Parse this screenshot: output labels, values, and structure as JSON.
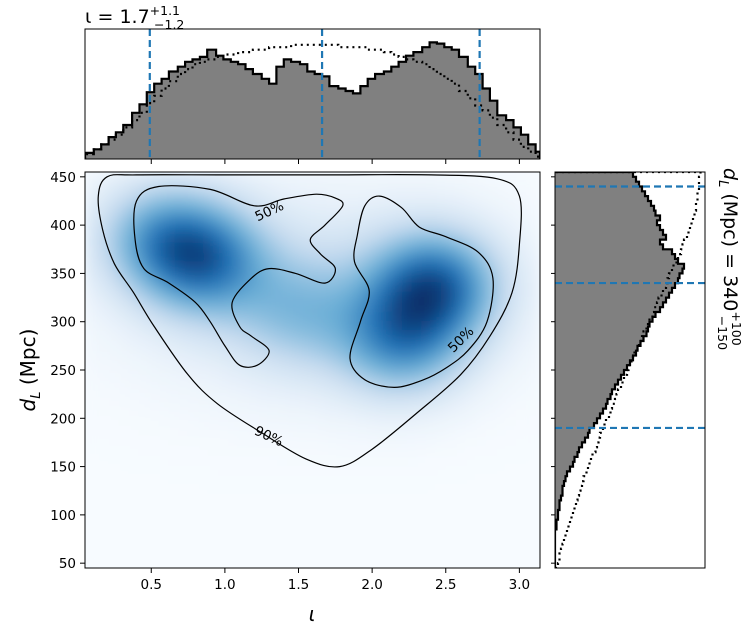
{
  "chart_data": [
    {
      "panel": "top-marginal",
      "type": "histogram",
      "summary": {
        "median": "1.7",
        "plus": "+1.1",
        "minus": "−1.2"
      },
      "summary_symbol": "ι",
      "xlim": [
        0.05,
        3.14
      ],
      "ylim": [
        0,
        1.07
      ],
      "vlines": [
        0.49,
        1.66,
        2.73
      ],
      "vline_color": "#1f77b4",
      "fill_color": "#808080",
      "bin_edges": [
        0.05,
        0.11,
        0.16,
        0.21,
        0.26,
        0.31,
        0.37,
        0.42,
        0.47,
        0.52,
        0.57,
        0.62,
        0.68,
        0.73,
        0.78,
        0.83,
        0.88,
        0.94,
        0.99,
        1.04,
        1.09,
        1.14,
        1.19,
        1.25,
        1.3,
        1.35,
        1.4,
        1.45,
        1.51,
        1.56,
        1.61,
        1.66,
        1.71,
        1.77,
        1.82,
        1.87,
        1.92,
        1.97,
        2.02,
        2.08,
        2.13,
        2.18,
        2.23,
        2.28,
        2.34,
        2.39,
        2.44,
        2.49,
        2.54,
        2.59,
        2.65,
        2.7,
        2.75,
        2.8,
        2.85,
        2.91,
        2.96,
        3.01,
        3.06,
        3.11,
        3.14
      ],
      "posterior": [
        0.05,
        0.08,
        0.12,
        0.18,
        0.22,
        0.28,
        0.38,
        0.45,
        0.55,
        0.62,
        0.66,
        0.72,
        0.76,
        0.8,
        0.82,
        0.84,
        0.9,
        0.85,
        0.82,
        0.8,
        0.78,
        0.74,
        0.7,
        0.66,
        0.62,
        0.76,
        0.82,
        0.8,
        0.78,
        0.72,
        0.7,
        0.68,
        0.6,
        0.58,
        0.56,
        0.54,
        0.6,
        0.66,
        0.7,
        0.72,
        0.76,
        0.8,
        0.85,
        0.88,
        0.92,
        0.96,
        0.95,
        0.92,
        0.9,
        0.84,
        0.76,
        0.7,
        0.58,
        0.48,
        0.36,
        0.32,
        0.26,
        0.2,
        0.12,
        0.06
      ],
      "prior": [
        0.04,
        0.08,
        0.12,
        0.16,
        0.2,
        0.26,
        0.32,
        0.38,
        0.46,
        0.52,
        0.58,
        0.64,
        0.7,
        0.74,
        0.78,
        0.8,
        0.82,
        0.84,
        0.86,
        0.86,
        0.88,
        0.88,
        0.9,
        0.9,
        0.92,
        0.92,
        0.92,
        0.94,
        0.94,
        0.94,
        0.94,
        0.94,
        0.94,
        0.92,
        0.92,
        0.92,
        0.92,
        0.9,
        0.9,
        0.88,
        0.86,
        0.84,
        0.82,
        0.8,
        0.78,
        0.74,
        0.7,
        0.66,
        0.62,
        0.56,
        0.5,
        0.44,
        0.4,
        0.34,
        0.28,
        0.22,
        0.16,
        0.1,
        0.06,
        0.02
      ]
    },
    {
      "panel": "joint",
      "type": "heatmap",
      "xlabel": "ι",
      "ylabel_main": "d",
      "ylabel_sub": "L",
      "ylabel_unit": " (Mpc)",
      "xlim": [
        0.05,
        3.14
      ],
      "ylim": [
        45,
        455
      ],
      "xticks": [
        0.5,
        1.0,
        1.5,
        2.0,
        2.5,
        3.0
      ],
      "xtick_labels": [
        "0.5",
        "1.0",
        "1.5",
        "2.0",
        "2.5",
        "3.0"
      ],
      "yticks": [
        50,
        100,
        150,
        200,
        250,
        300,
        350,
        400,
        450
      ],
      "ytick_labels": [
        "50",
        "100",
        "150",
        "200",
        "250",
        "300",
        "350",
        "400",
        "450"
      ],
      "colormap": [
        "#f7fbff",
        "#c6dbef",
        "#6baed6",
        "#2171b5",
        "#08306b"
      ],
      "density_peaks": [
        {
          "iota": 0.85,
          "dL": 365,
          "weight": 0.85
        },
        {
          "iota": 0.55,
          "dL": 390,
          "weight": 0.55
        },
        {
          "iota": 2.42,
          "dL": 338,
          "weight": 1.0
        },
        {
          "iota": 2.2,
          "dL": 280,
          "weight": 0.7
        },
        {
          "iota": 1.5,
          "dL": 310,
          "weight": 0.35
        }
      ],
      "contours": [
        {
          "label": "90%",
          "label_iota": 1.3,
          "label_dL": 182,
          "label_angle": 25,
          "points": [
            [
              0.2,
              450
            ],
            [
              0.4,
              452
            ],
            [
              1.0,
              452
            ],
            [
              1.7,
              452
            ],
            [
              2.4,
              452
            ],
            [
              2.85,
              448
            ],
            [
              3.0,
              430
            ],
            [
              3.0,
              380
            ],
            [
              2.95,
              330
            ],
            [
              2.8,
              285
            ],
            [
              2.6,
              245
            ],
            [
              2.3,
              205
            ],
            [
              2.0,
              168
            ],
            [
              1.78,
              150
            ],
            [
              1.55,
              158
            ],
            [
              1.25,
              185
            ],
            [
              0.95,
              215
            ],
            [
              0.75,
              245
            ],
            [
              0.52,
              295
            ],
            [
              0.38,
              330
            ],
            [
              0.25,
              360
            ],
            [
              0.17,
              395
            ],
            [
              0.14,
              430
            ],
            [
              0.2,
              450
            ]
          ]
        },
        {
          "label": "50%",
          "label_iota": 1.3,
          "label_dL": 415,
          "label_angle": -25,
          "points": [
            [
              0.45,
              355
            ],
            [
              0.39,
              385
            ],
            [
              0.4,
              425
            ],
            [
              0.55,
              440
            ],
            [
              0.9,
              437
            ],
            [
              1.2,
              420
            ],
            [
              1.4,
              427
            ],
            [
              1.62,
              432
            ],
            [
              1.75,
              428
            ],
            [
              1.8,
              420
            ],
            [
              1.68,
              400
            ],
            [
              1.58,
              385
            ],
            [
              1.65,
              370
            ],
            [
              1.75,
              355
            ],
            [
              1.68,
              340
            ],
            [
              1.48,
              350
            ],
            [
              1.3,
              355
            ],
            [
              1.18,
              345
            ],
            [
              1.05,
              320
            ],
            [
              1.1,
              295
            ],
            [
              1.18,
              285
            ],
            [
              1.3,
              270
            ],
            [
              1.22,
              255
            ],
            [
              1.1,
              255
            ],
            [
              1.0,
              275
            ],
            [
              0.9,
              300
            ],
            [
              0.8,
              320
            ],
            [
              0.62,
              340
            ],
            [
              0.45,
              355
            ]
          ]
        },
        {
          "label": "50%",
          "label_iota": 2.6,
          "label_dL": 282,
          "label_angle": -45,
          "points": [
            [
              1.9,
              390
            ],
            [
              1.95,
              420
            ],
            [
              2.05,
              430
            ],
            [
              2.2,
              418
            ],
            [
              2.32,
              398
            ],
            [
              2.5,
              388
            ],
            [
              2.72,
              372
            ],
            [
              2.82,
              345
            ],
            [
              2.78,
              300
            ],
            [
              2.65,
              270
            ],
            [
              2.5,
              252
            ],
            [
              2.35,
              240
            ],
            [
              2.15,
              232
            ],
            [
              1.95,
              240
            ],
            [
              1.85,
              262
            ],
            [
              1.92,
              300
            ],
            [
              1.98,
              332
            ],
            [
              1.88,
              362
            ],
            [
              1.9,
              390
            ]
          ]
        }
      ]
    },
    {
      "panel": "right-marginal",
      "type": "histogram",
      "orientation": "horizontal",
      "summary": {
        "median": "340",
        "plus": "+100",
        "minus": "−150"
      },
      "summary_main": "d",
      "summary_sub": "L",
      "summary_unit": " (Mpc) = ",
      "ylim": [
        45,
        455
      ],
      "xlim": [
        0,
        1.0
      ],
      "hlines": [
        190,
        340,
        440
      ],
      "hline_color": "#1f77b4",
      "fill_color": "#808080",
      "bin_edges": [
        45,
        50,
        55,
        60,
        65,
        70,
        75,
        80,
        85,
        90,
        95,
        100,
        105,
        110,
        115,
        120,
        125,
        130,
        135,
        140,
        145,
        150,
        155,
        160,
        165,
        170,
        175,
        180,
        185,
        190,
        195,
        200,
        205,
        210,
        215,
        220,
        225,
        230,
        235,
        240,
        245,
        250,
        255,
        260,
        265,
        270,
        275,
        280,
        285,
        290,
        295,
        300,
        305,
        310,
        315,
        320,
        325,
        330,
        335,
        340,
        345,
        350,
        355,
        360,
        365,
        370,
        375,
        380,
        385,
        390,
        395,
        400,
        405,
        410,
        415,
        420,
        425,
        430,
        435,
        440,
        445,
        450,
        455
      ],
      "posterior": [
        0.0,
        0.0,
        0.0,
        0.0,
        0.0,
        0.0,
        0.0,
        0.0,
        0.01,
        0.01,
        0.02,
        0.02,
        0.03,
        0.03,
        0.04,
        0.05,
        0.05,
        0.06,
        0.07,
        0.08,
        0.1,
        0.12,
        0.13,
        0.15,
        0.16,
        0.18,
        0.2,
        0.22,
        0.23,
        0.26,
        0.28,
        0.3,
        0.32,
        0.34,
        0.35,
        0.37,
        0.38,
        0.4,
        0.42,
        0.44,
        0.46,
        0.48,
        0.5,
        0.52,
        0.54,
        0.55,
        0.57,
        0.59,
        0.61,
        0.62,
        0.63,
        0.65,
        0.67,
        0.7,
        0.72,
        0.74,
        0.76,
        0.78,
        0.8,
        0.82,
        0.83,
        0.85,
        0.86,
        0.82,
        0.8,
        0.78,
        0.72,
        0.7,
        0.74,
        0.72,
        0.7,
        0.68,
        0.7,
        0.67,
        0.66,
        0.64,
        0.62,
        0.6,
        0.58,
        0.56,
        0.54,
        0.52
      ],
      "prior": [
        0.02,
        0.03,
        0.03,
        0.04,
        0.05,
        0.06,
        0.07,
        0.08,
        0.09,
        0.1,
        0.11,
        0.12,
        0.13,
        0.14,
        0.15,
        0.16,
        0.17,
        0.18,
        0.19,
        0.21,
        0.22,
        0.23,
        0.24,
        0.25,
        0.27,
        0.28,
        0.29,
        0.3,
        0.32,
        0.33,
        0.34,
        0.36,
        0.37,
        0.38,
        0.4,
        0.41,
        0.42,
        0.44,
        0.45,
        0.46,
        0.48,
        0.49,
        0.51,
        0.52,
        0.53,
        0.55,
        0.56,
        0.58,
        0.59,
        0.61,
        0.62,
        0.63,
        0.65,
        0.66,
        0.68,
        0.69,
        0.71,
        0.72,
        0.74,
        0.75,
        0.76,
        0.78,
        0.79,
        0.81,
        0.82,
        0.84,
        0.85,
        0.86,
        0.88,
        0.89,
        0.9,
        0.91,
        0.92,
        0.93,
        0.94,
        0.94,
        0.95,
        0.95,
        0.96,
        0.96,
        0.96,
        0.97
      ]
    }
  ]
}
